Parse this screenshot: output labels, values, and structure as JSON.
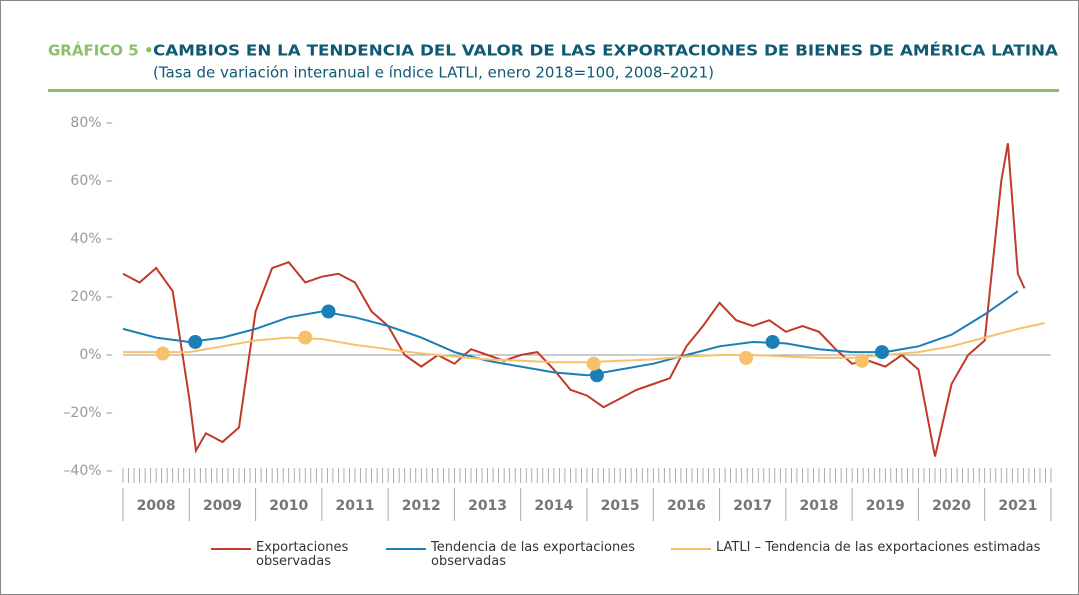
{
  "chart_data": {
    "type": "line",
    "label": "GRÁFICO 5 •",
    "title": "CAMBIOS EN LA TENDENCIA DEL VALOR DE LAS EXPORTACIONES DE BIENES DE AMÉRICA LATINA",
    "subtitle": "(Tasa de variación interanual e índice LATLI, enero 2018=100, 2008–2021)",
    "categories": [
      "2008",
      "2009",
      "2010",
      "2011",
      "2012",
      "2013",
      "2014",
      "2015",
      "2016",
      "2017",
      "2018",
      "2019",
      "2020",
      "2021"
    ],
    "xlim": [
      2008,
      2022
    ],
    "ylim": [
      -40,
      80
    ],
    "yticks": [
      {
        "value": -40,
        "label": "–40% –"
      },
      {
        "value": -20,
        "label": "–20% –"
      },
      {
        "value": 0,
        "label": "0% –"
      },
      {
        "value": 20,
        "label": "20% –"
      },
      {
        "value": 40,
        "label": "40% –"
      },
      {
        "value": 60,
        "label": "60% –"
      },
      {
        "value": 80,
        "label": "80% –"
      }
    ],
    "series": [
      {
        "name": "Exportaciones observadas",
        "color": "#c0392b",
        "x": [
          2008,
          2008.25,
          2008.5,
          2008.75,
          2009,
          2009.1,
          2009.25,
          2009.5,
          2009.75,
          2010,
          2010.25,
          2010.5,
          2010.75,
          2011,
          2011.25,
          2011.5,
          2011.75,
          2012,
          2012.25,
          2012.5,
          2012.75,
          2013,
          2013.25,
          2013.5,
          2013.75,
          2014,
          2014.25,
          2014.5,
          2014.75,
          2015,
          2015.25,
          2015.5,
          2015.75,
          2016,
          2016.25,
          2016.5,
          2016.75,
          2017,
          2017.25,
          2017.5,
          2017.75,
          2018,
          2018.25,
          2018.5,
          2018.75,
          2019,
          2019.25,
          2019.5,
          2019.75,
          2020,
          2020.25,
          2020.5,
          2020.75,
          2021,
          2021.25,
          2021.35,
          2021.5,
          2021.6
        ],
        "values": [
          28,
          25,
          30,
          22,
          -15,
          -33,
          -27,
          -30,
          -25,
          15,
          30,
          32,
          25,
          27,
          28,
          25,
          15,
          10,
          0,
          -4,
          0,
          -3,
          2,
          0,
          -2,
          0,
          1,
          -5,
          -12,
          -14,
          -18,
          -15,
          -12,
          -10,
          -8,
          3,
          10,
          18,
          12,
          10,
          12,
          8,
          10,
          8,
          2,
          -3,
          -2,
          -4,
          0,
          -5,
          -35,
          -10,
          0,
          5,
          60,
          73,
          28,
          23
        ]
      },
      {
        "name": "Tendencia de las exportaciones observadas",
        "color": "#1a7fb5",
        "x": [
          2008,
          2008.5,
          2009,
          2009.5,
          2010,
          2010.5,
          2011,
          2011.5,
          2012,
          2012.5,
          2013,
          2013.5,
          2014,
          2014.5,
          2015,
          2015.5,
          2016,
          2016.5,
          2017,
          2017.5,
          2018,
          2018.5,
          2019,
          2019.5,
          2020,
          2020.5,
          2021,
          2021.5
        ],
        "values": [
          9,
          6,
          4.5,
          6,
          9,
          13,
          15,
          13,
          10,
          6,
          1,
          -2,
          -4,
          -6,
          -7,
          -5,
          -3,
          0,
          3,
          4.5,
          4,
          2,
          1,
          1,
          3,
          7,
          14,
          22
        ],
        "marker_x": [
          2009.09,
          2011.1,
          2015.15,
          2017.8,
          2019.45
        ],
        "marker_values": [
          4.5,
          15,
          -7,
          4.5,
          1
        ]
      },
      {
        "name": "LATLI – Tendencia de las exportaciones estimadas",
        "color": "#f7c16b",
        "x": [
          2008,
          2008.5,
          2009,
          2009.5,
          2010,
          2010.5,
          2011,
          2011.5,
          2012,
          2012.5,
          2013,
          2013.5,
          2014,
          2014.5,
          2015,
          2015.5,
          2016,
          2016.5,
          2017,
          2017.5,
          2018,
          2018.5,
          2019,
          2019.5,
          2020,
          2020.5,
          2021,
          2021.5,
          2021.9
        ],
        "values": [
          1,
          1,
          1,
          3,
          5,
          6,
          5.5,
          3.5,
          2,
          0.5,
          -0.5,
          -1.5,
          -2,
          -2.5,
          -2.5,
          -2,
          -1.5,
          -0.5,
          0,
          0,
          -0.5,
          -1,
          -1,
          0,
          1,
          3,
          6,
          9,
          11
        ],
        "marker_x": [
          2008.6,
          2010.75,
          2015.1,
          2017.4,
          2019.15
        ],
        "marker_values": [
          0.5,
          6,
          -3,
          -1,
          -2
        ]
      }
    ]
  }
}
